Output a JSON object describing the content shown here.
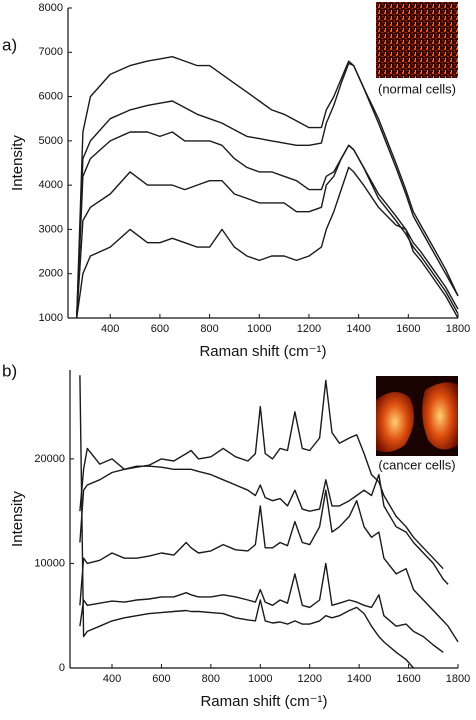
{
  "chart_data": [
    {
      "type": "line",
      "panel_label": "a)",
      "inset_label": "(normal cells)",
      "xlabel": "Raman shift (cm⁻¹)",
      "ylabel": "Intensity",
      "xlim": [
        230,
        1800
      ],
      "ylim": [
        1000,
        8000
      ],
      "xticks": [
        400,
        600,
        800,
        1000,
        1200,
        1400,
        1600,
        1800
      ],
      "yticks": [
        1000,
        2000,
        3000,
        4000,
        5000,
        6000,
        7000,
        8000
      ],
      "x": [
        265,
        290,
        320,
        400,
        480,
        550,
        600,
        650,
        700,
        750,
        800,
        850,
        900,
        950,
        1000,
        1050,
        1100,
        1150,
        1200,
        1250,
        1270,
        1300,
        1330,
        1360,
        1380,
        1420,
        1480,
        1550,
        1590,
        1620,
        1650,
        1700,
        1750,
        1800
      ],
      "series": [
        {
          "color": "#1a1a1a",
          "values": [
            1000,
            5200,
            6000,
            6500,
            6700,
            6800,
            6850,
            6900,
            6800,
            6700,
            6700,
            6500,
            6300,
            6100,
            5900,
            5700,
            5600,
            5450,
            5300,
            5300,
            5700,
            6000,
            6400,
            6800,
            6700,
            6200,
            5500,
            4500,
            3900,
            3400,
            3100,
            2600,
            2100,
            1500
          ]
        },
        {
          "color": "#1a1a1a",
          "values": [
            1000,
            4600,
            5000,
            5500,
            5700,
            5800,
            5850,
            5900,
            5750,
            5600,
            5500,
            5400,
            5250,
            5100,
            5050,
            5000,
            4950,
            4900,
            4900,
            4950,
            5400,
            5800,
            6300,
            6750,
            6700,
            6200,
            5400,
            4400,
            3800,
            3300,
            3000,
            2500,
            2000,
            1500
          ]
        },
        {
          "color": "#1a1a1a",
          "values": [
            1000,
            4200,
            4600,
            5000,
            5200,
            5200,
            5100,
            5200,
            5000,
            5000,
            5000,
            4900,
            4600,
            4400,
            4300,
            4300,
            4200,
            4100,
            3900,
            3900,
            4200,
            4300,
            4600,
            4900,
            4800,
            4400,
            3800,
            3300,
            3000,
            2700,
            2500,
            2100,
            1700,
            1200
          ]
        },
        {
          "color": "#1a1a1a",
          "values": [
            1000,
            3200,
            3500,
            3800,
            4300,
            4000,
            4000,
            4000,
            3900,
            4000,
            4100,
            4100,
            3800,
            3700,
            3600,
            3600,
            3600,
            3400,
            3400,
            3500,
            4000,
            4200,
            4600,
            4900,
            4800,
            4400,
            3700,
            3200,
            2900,
            2600,
            2400,
            2000,
            1600,
            1100
          ]
        },
        {
          "color": "#1a1a1a",
          "values": [
            1000,
            2000,
            2400,
            2600,
            3000,
            2700,
            2700,
            2800,
            2700,
            2600,
            2600,
            3000,
            2600,
            2400,
            2300,
            2400,
            2400,
            2300,
            2400,
            2600,
            3000,
            3400,
            3900,
            4400,
            4300,
            4000,
            3500,
            3100,
            3000,
            2500,
            2300,
            1900,
            1500,
            1000
          ]
        }
      ]
    },
    {
      "type": "line",
      "panel_label": "b)",
      "inset_label": "(cancer cells)",
      "xlabel": "Raman shift (cm⁻¹)",
      "ylabel": "Intensity",
      "xlim": [
        230,
        1800
      ],
      "ylim": [
        0,
        28500
      ],
      "xticks": [
        400,
        600,
        800,
        1000,
        1200,
        1400,
        1600,
        1800
      ],
      "yticks": [
        0,
        10000,
        20000
      ],
      "x": [
        270,
        285,
        300,
        350,
        400,
        450,
        500,
        550,
        600,
        650,
        700,
        720,
        750,
        800,
        850,
        900,
        950,
        980,
        1000,
        1020,
        1050,
        1080,
        1110,
        1140,
        1170,
        1200,
        1240,
        1265,
        1290,
        1320,
        1360,
        1390,
        1420,
        1450,
        1480,
        1500,
        1550,
        1590,
        1620,
        1660,
        1700,
        1740,
        1760,
        1800
      ],
      "series": [
        {
          "color": "#1a1a1a",
          "values": [
            15000,
            19000,
            21000,
            19500,
            20000,
            19000,
            19200,
            19400,
            20000,
            19800,
            20500,
            20800,
            20000,
            20200,
            21000,
            20200,
            19800,
            20500,
            25000,
            20500,
            20000,
            21000,
            20800,
            24500,
            21000,
            20800,
            22000,
            27500,
            22500,
            21500,
            22000,
            22300,
            20500,
            18500,
            17800,
            16500,
            14500,
            13500,
            12500,
            11500,
            10500,
            9500,
            null,
            null
          ]
        },
        {
          "color": "#1a1a1a",
          "values": [
            12000,
            17000,
            17500,
            18000,
            18700,
            19000,
            19300,
            19300,
            19200,
            19000,
            19000,
            19000,
            18800,
            18500,
            18000,
            17500,
            17000,
            16500,
            17500,
            16300,
            16000,
            16200,
            15500,
            17000,
            15200,
            15000,
            15200,
            18000,
            15500,
            15500,
            16000,
            16500,
            17000,
            16500,
            18500,
            15500,
            13500,
            13000,
            12000,
            11000,
            10000,
            8500,
            8000,
            null
          ]
        },
        {
          "color": "#1a1a1a",
          "values": [
            6000,
            10500,
            10000,
            10300,
            11000,
            10500,
            10500,
            10700,
            11000,
            10800,
            12000,
            11500,
            11000,
            11200,
            11800,
            11300,
            11200,
            11800,
            15500,
            11500,
            11500,
            12000,
            11700,
            14000,
            12000,
            11800,
            13500,
            17000,
            13000,
            13500,
            14500,
            16000,
            13500,
            12500,
            13000,
            10500,
            9000,
            9500,
            7500,
            6500,
            5500,
            4500,
            4000,
            2500
          ]
        },
        {
          "color": "#1a1a1a",
          "values": [
            4000,
            6500,
            6000,
            6200,
            6400,
            6300,
            6500,
            6600,
            6800,
            6800,
            7200,
            7000,
            6800,
            6800,
            7000,
            6800,
            6500,
            6300,
            7500,
            6300,
            6000,
            6500,
            6200,
            9000,
            6000,
            5800,
            6500,
            10000,
            6000,
            6200,
            6500,
            6300,
            6000,
            5800,
            7000,
            5000,
            4000,
            4200,
            3500,
            3000,
            2200,
            1500,
            null,
            null
          ]
        },
        {
          "color": "#1a1a1a",
          "values": [
            28000,
            3000,
            3500,
            4000,
            4500,
            4800,
            5000,
            5200,
            5300,
            5400,
            5500,
            5400,
            5400,
            5300,
            5200,
            4800,
            4600,
            4500,
            6500,
            4500,
            4300,
            4400,
            4200,
            4500,
            4200,
            4200,
            4500,
            5000,
            4800,
            5000,
            5500,
            5800,
            5200,
            4000,
            3000,
            2500,
            1500,
            800,
            0,
            null,
            null,
            null,
            null,
            null
          ]
        }
      ]
    }
  ]
}
